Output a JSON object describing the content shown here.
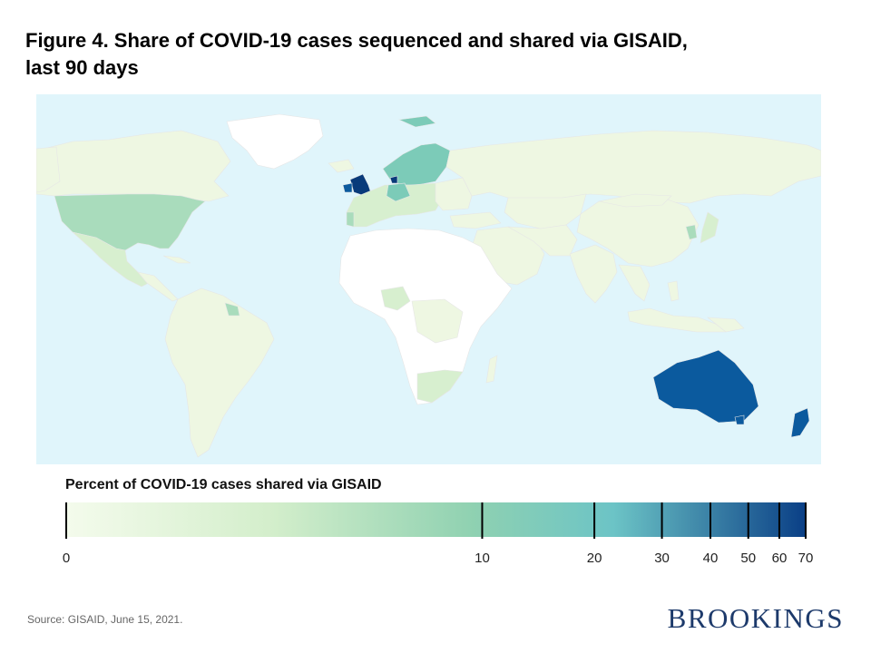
{
  "title_line1": "Figure 4. Share of COVID-19 cases sequenced and shared via GISAID,",
  "title_line2": "last 90 days",
  "legend": {
    "title": "Percent of COVID-19 cases shared via GISAID",
    "scale": "log",
    "range": [
      0,
      70
    ],
    "ticks": [
      "0",
      "10",
      "20",
      "30",
      "40",
      "50",
      "60",
      "70"
    ],
    "color_low": "#f4fbec",
    "color_mid": "#8fd1b1",
    "color_10": "#6cc4c6",
    "color_high": "#0a3f86"
  },
  "map_colors": {
    "ocean": "#e0f5fb",
    "no_data": "#ffffff",
    "very_low": "#eef7e2",
    "low": "#d7efcf",
    "medium": "#a9dcbc",
    "elevated": "#7ccbb8",
    "high": "#2f7fb9",
    "very_high": "#0b5a9e",
    "highest": "#083a7a"
  },
  "source": "Source: GISAID,  June 15, 2021.",
  "brand": "BROOKINGS"
}
